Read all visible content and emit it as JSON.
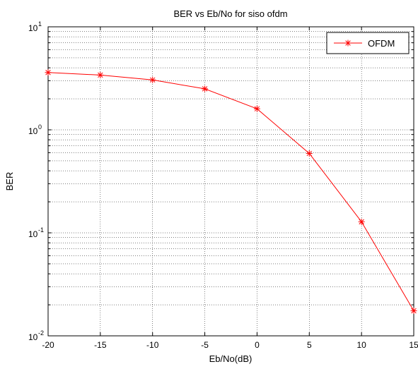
{
  "chart_data": {
    "type": "line",
    "title": "BER vs Eb/No for siso ofdm",
    "xlabel": "Eb/No(dB)",
    "ylabel": "BER",
    "x": [
      -20,
      -15,
      -10,
      -5,
      0,
      5,
      10,
      15
    ],
    "series": [
      {
        "name": "OFDM",
        "values": [
          3.6,
          3.4,
          3.05,
          2.5,
          1.6,
          0.59,
          0.128,
          0.0175
        ],
        "color": "#ff0000",
        "marker": "asterisk"
      }
    ],
    "xlim": [
      -20,
      15
    ],
    "ylim": [
      0.01,
      10
    ],
    "yscale": "log",
    "xticks": [
      "-20",
      "-15",
      "-10",
      "-5",
      "0",
      "5",
      "10",
      "15"
    ],
    "yticks": [
      {
        "base": "10",
        "exp": "-2"
      },
      {
        "base": "10",
        "exp": "-1"
      },
      {
        "base": "10",
        "exp": "0"
      },
      {
        "base": "10",
        "exp": "1"
      }
    ],
    "grid": true,
    "legend": "top-right"
  }
}
